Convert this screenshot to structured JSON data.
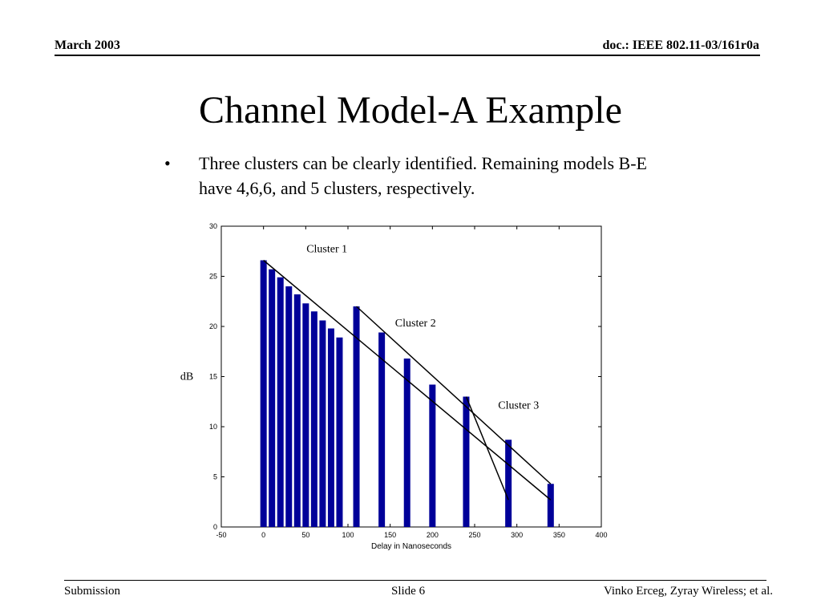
{
  "header": {
    "date": "March 2003",
    "doc": "doc.: IEEE 802.11-03/161r0a"
  },
  "slide": {
    "title": "Channel Model-A Example",
    "bullet_marker": "•",
    "bullet_text": "Three clusters can be clearly identified. Remaining models B-E have 4,6,6, and 5 clusters, respectively."
  },
  "footer": {
    "left": "Submission",
    "center": "Slide 6",
    "right": "Vinko Erceg, Zyray Wireless; et al."
  },
  "chart_data": {
    "type": "bar",
    "title": "",
    "xlabel": "Delay in Nanoseconds",
    "ylabel": "dB",
    "xlim": [
      -50,
      400
    ],
    "ylim": [
      0,
      30
    ],
    "xticks": [
      -50,
      0,
      50,
      100,
      150,
      200,
      250,
      300,
      350,
      400
    ],
    "yticks": [
      0,
      5,
      10,
      15,
      20,
      25,
      30
    ],
    "bar_color": "#000099",
    "x": [
      0,
      10,
      20,
      30,
      40,
      50,
      60,
      70,
      80,
      90,
      110,
      140,
      170,
      200,
      240,
      290,
      340
    ],
    "values": [
      26.6,
      25.7,
      24.9,
      24.0,
      23.2,
      22.3,
      21.5,
      20.6,
      19.8,
      18.9,
      22.0,
      19.4,
      16.8,
      14.2,
      13.0,
      8.7,
      4.3
    ],
    "annotations": [
      {
        "text": "Cluster 1",
        "x": 75,
        "y": 27.4
      },
      {
        "text": "Cluster 2",
        "x": 180,
        "y": 20.0
      },
      {
        "text": "Cluster 3",
        "x": 302,
        "y": 11.8
      }
    ],
    "envelopes": [
      {
        "from": [
          0,
          26.6
        ],
        "to": [
          340,
          2.7
        ]
      },
      {
        "from": [
          110,
          22.0
        ],
        "to": [
          340,
          4.3
        ]
      },
      {
        "from": [
          240,
          13.0
        ],
        "to": [
          290,
          2.7
        ]
      }
    ]
  }
}
